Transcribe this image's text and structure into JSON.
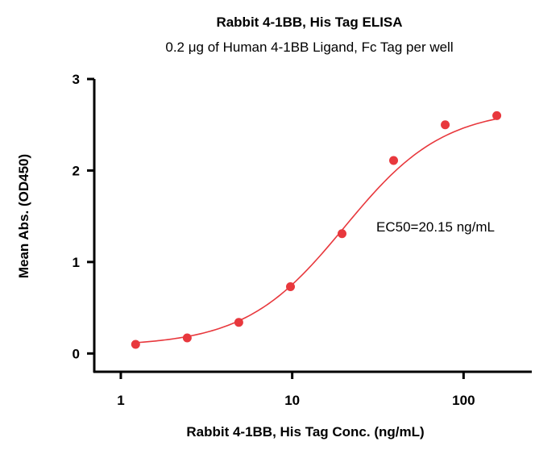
{
  "chart_data": {
    "type": "scatter",
    "title": "Rabbit 4-1BB, His Tag ELISA",
    "subtitle": "0.2 μg of Human 4-1BB Ligand, Fc Tag per well",
    "xlabel": "Rabbit 4-1BB, His Tag Conc. (ng/mL)",
    "ylabel": "Mean Abs. (OD450)",
    "xscale": "log",
    "xlim": [
      0.7,
      250
    ],
    "ylim": [
      -0.2,
      3
    ],
    "xticks": [
      1,
      10,
      100
    ],
    "xtick_labels": [
      "1",
      "10",
      "100"
    ],
    "yticks": [
      0,
      1,
      2,
      3
    ],
    "ytick_labels": [
      "0",
      "1",
      "2",
      "3"
    ],
    "grid": false,
    "color": "#e8383d",
    "annotation": "EC50=20.15 ng/mL",
    "series": [
      {
        "x": [
          1.22,
          2.44,
          4.88,
          9.77,
          19.53,
          39.06,
          78.13,
          156.25
        ],
        "y": [
          0.1,
          0.17,
          0.34,
          0.73,
          1.31,
          2.11,
          2.5,
          2.6
        ]
      }
    ],
    "fit": {
      "model": "4PL",
      "bottom": 0.08,
      "top": 2.68,
      "ec50": 20.15,
      "hill": 1.5
    }
  }
}
